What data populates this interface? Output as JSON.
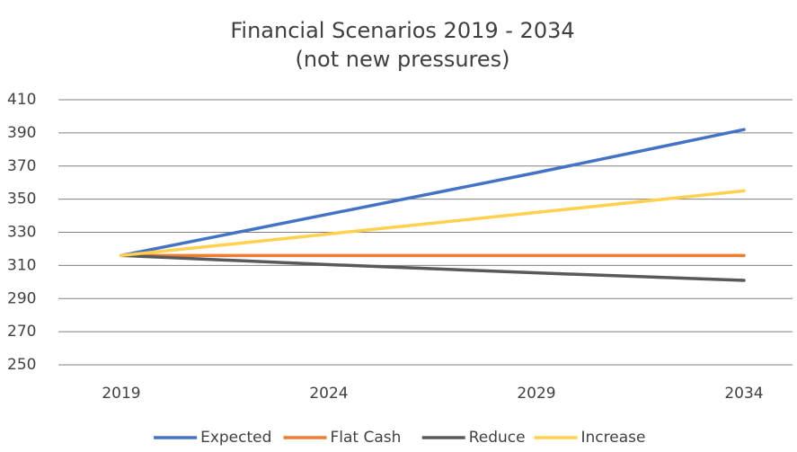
{
  "chart_data": {
    "type": "line",
    "title": "Financial Scenarios 2019 - 2034",
    "subtitle": "(not new pressures)",
    "categories": [
      "2019",
      "2024",
      "2029",
      "2034"
    ],
    "series": [
      {
        "name": "Expected",
        "color": "#4472c4",
        "values": [
          316,
          341,
          366,
          392
        ]
      },
      {
        "name": "Flat Cash",
        "color": "#ed7d31",
        "values": [
          316,
          316,
          316,
          316
        ]
      },
      {
        "name": "Reduce",
        "color": "#595959",
        "values": [
          316,
          310.5,
          305.5,
          301
        ]
      },
      {
        "name": "Increase",
        "color": "#ffd14f",
        "values": [
          316,
          329,
          342,
          355
        ]
      }
    ],
    "ylim": [
      250,
      410
    ],
    "yticks": [
      250,
      270,
      290,
      310,
      330,
      350,
      370,
      390,
      410
    ],
    "grid": true,
    "legend": "bottom"
  }
}
